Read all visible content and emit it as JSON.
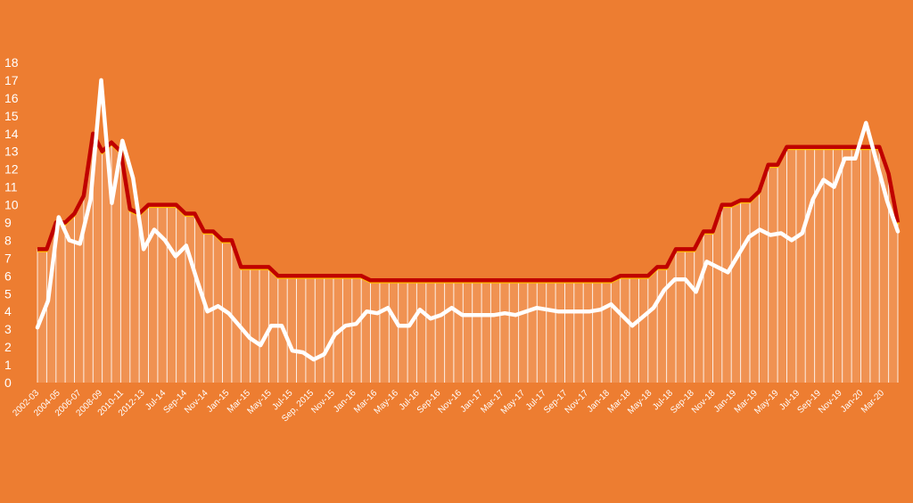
{
  "colors": {
    "background": "#ED7D31",
    "area_fill": "#F3A46E",
    "drop_lines": "#FFFFFF",
    "policy_rate_line": "#C00000",
    "policy_rate_shadow": "#FFC000",
    "inflation_line": "#FFFFFF",
    "text": "#FFFFFF"
  },
  "chart_data": {
    "type": "line",
    "title": "",
    "xlabel": "",
    "ylabel": "",
    "ylim": [
      0,
      18
    ],
    "y_ticks": [
      0,
      1,
      2,
      3,
      4,
      5,
      6,
      7,
      8,
      9,
      10,
      11,
      12,
      13,
      14,
      15,
      16,
      17,
      18
    ],
    "grid": false,
    "legend": "none",
    "x_tick_labels": [
      "2002-03",
      "2004-05",
      "2006-07",
      "2008-09",
      "2010-11",
      "2012-13",
      "Jul-14",
      "Sep-14",
      "Nov-14",
      "Jan-15",
      "Mar-15",
      "May-15",
      "Jul-15",
      "Sep, 2015",
      "Nov-15",
      "Jan-16",
      "Mar-16",
      "May-16",
      "Jul-16",
      "Sep-16",
      "Nov-16",
      "Jan-17",
      "Mar-17",
      "May-17",
      "Jul-17",
      "Sep-17",
      "Nov-17",
      "Jan-18",
      "Mar-18",
      "May-18",
      "Jul-18",
      "Sep-18",
      "Nov-18",
      "Jan-19",
      "Mar-19",
      "May-19",
      "Jul-19",
      "Sep-19",
      "Nov-19",
      "Jan-20",
      "Mar-20"
    ],
    "series": [
      {
        "values": [
          7.5,
          7.5,
          9,
          9,
          9.5,
          10.5,
          14,
          13,
          13.5,
          13,
          9.75,
          9.5,
          10,
          10,
          10,
          10,
          9.5,
          9.5,
          8.5,
          8.5,
          8,
          8,
          6.5,
          6.5,
          6.5,
          6.5,
          6,
          6,
          6,
          6,
          6,
          6,
          6,
          6,
          6,
          6,
          5.75,
          5.75,
          5.75,
          5.75,
          5.75,
          5.75,
          5.75,
          5.75,
          5.75,
          5.75,
          5.75,
          5.75,
          5.75,
          5.75,
          5.75,
          5.75,
          5.75,
          5.75,
          5.75,
          5.75,
          5.75,
          5.75,
          5.75,
          5.75,
          5.75,
          5.75,
          5.75,
          6,
          6,
          6,
          6,
          6.5,
          6.5,
          7.5,
          7.5,
          7.5,
          8.5,
          8.5,
          10,
          10,
          10.25,
          10.25,
          10.75,
          12.25,
          12.25,
          13.25,
          13.25,
          13.25,
          13.25,
          13.25,
          13.25,
          13.25,
          13.25,
          13.25,
          13.25,
          13.25,
          11.75,
          9
        ]
      },
      {
        "values": [
          3.1,
          4.6,
          9.3,
          8.0,
          7.8,
          10.3,
          17.0,
          10.1,
          13.6,
          11.5,
          7.5,
          8.6,
          8.0,
          7.1,
          7.7,
          5.8,
          4.0,
          4.3,
          3.9,
          3.2,
          2.5,
          2.1,
          3.2,
          3.2,
          1.8,
          1.7,
          1.3,
          1.6,
          2.7,
          3.2,
          3.3,
          4.0,
          3.9,
          4.2,
          3.2,
          3.2,
          4.1,
          3.6,
          3.8,
          4.2,
          3.8,
          3.8,
          3.8,
          3.8,
          3.9,
          3.8,
          4.0,
          4.2,
          4.1,
          4.0,
          4.0,
          4.0,
          4.0,
          4.1,
          4.4,
          3.8,
          3.2,
          3.7,
          4.2,
          5.2,
          5.8,
          5.8,
          5.1,
          6.8,
          6.5,
          6.2,
          7.2,
          8.2,
          8.6,
          8.3,
          8.4,
          8.0,
          8.4,
          10.3,
          11.4,
          11.0,
          12.6,
          12.6,
          14.6,
          12.4,
          10.2,
          8.5
        ]
      }
    ]
  }
}
